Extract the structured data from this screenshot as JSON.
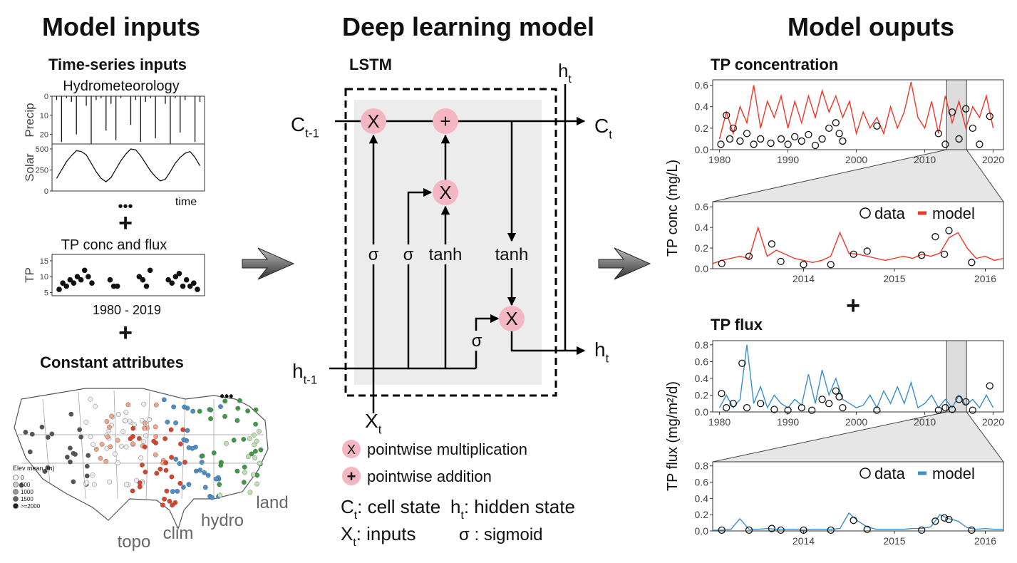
{
  "headers": [
    "Model inputs",
    "Deep learning model",
    "Model ouputs"
  ],
  "inputs": {
    "timeseries_title": "Time-series inputs",
    "hydro_title": "Hydrometeorology",
    "precip": {
      "label": "Precip",
      "ylim": [
        25,
        0
      ],
      "yticks": [
        0,
        10,
        20
      ],
      "values": [
        2,
        24,
        1,
        3,
        20,
        0,
        5,
        25,
        2,
        1,
        18,
        4,
        23,
        1,
        0,
        15,
        2,
        24,
        3,
        1,
        22,
        0,
        4,
        25,
        1,
        19,
        2,
        0,
        24,
        3
      ]
    },
    "solar": {
      "label": "Solar",
      "ylim": [
        0,
        560
      ],
      "yticks": [
        0,
        250,
        500
      ],
      "values": [
        150,
        250,
        350,
        420,
        480,
        470,
        430,
        330,
        230,
        150,
        110,
        160,
        260,
        360,
        440,
        500,
        490,
        420,
        330,
        240,
        170,
        120,
        140,
        230,
        330,
        400,
        450,
        470,
        400,
        300
      ]
    },
    "time_label": "time",
    "ellipsis": "•••",
    "plus": "+",
    "tp_title": "TP conc and flux",
    "tp": {
      "label": "TP",
      "ylim": [
        4,
        17
      ],
      "yticks": [
        5,
        10,
        15
      ],
      "x": [
        1,
        2,
        3,
        4,
        5,
        6,
        7,
        8,
        9,
        10,
        15,
        16,
        17,
        23,
        24,
        25,
        26,
        31,
        32,
        33,
        34,
        35,
        36,
        37,
        38,
        39
      ],
      "values": [
        6,
        8,
        7,
        9,
        8,
        10,
        9,
        12,
        10,
        8,
        9,
        7,
        7,
        10,
        9,
        7,
        12,
        9,
        8,
        10,
        11,
        7,
        9,
        7,
        8,
        6
      ]
    },
    "tp_range": "1980 - 2019",
    "plus2": "+",
    "const_title": "Constant attributes",
    "map_ellipsis": "•••",
    "map_legend_title": "Elev mean (m)",
    "map_legend_items": [
      "0",
      "500",
      "1000",
      "1500",
      ">=2000"
    ],
    "map_labels": [
      "topo",
      "clim",
      "hydro",
      "land"
    ]
  },
  "lstm": {
    "title": "LSTM",
    "c_prev": {
      "main": "C",
      "sub": "t-1"
    },
    "c_next": {
      "main": "C",
      "sub": "t"
    },
    "h_top": {
      "main": "h",
      "sub": "t"
    },
    "h_prev": {
      "main": "h",
      "sub": "t-1"
    },
    "h_next": {
      "main": "h",
      "sub": "t"
    },
    "x_in": {
      "main": "X",
      "sub": "t"
    },
    "ops": [
      "X",
      "+",
      "X",
      "X"
    ],
    "gates": [
      "σ",
      "σ",
      "tanh",
      "tanh",
      "σ"
    ],
    "legend": {
      "mult_symbol": "X",
      "mult": "pointwise multiplication",
      "add_symbol": "+",
      "add": "pointwise addition",
      "cell": {
        "main": "C",
        "sub": "t",
        "desc": ": cell state"
      },
      "hidden": {
        "main": "h",
        "sub": "t",
        "desc": ": hidden state"
      },
      "inputs": {
        "main": "X",
        "sub": "t",
        "desc": ": inputs"
      },
      "sigmoid": {
        "main": "σ",
        "desc": " : sigmoid"
      }
    }
  },
  "outputs": {
    "conc_title": "TP concentration",
    "conc_ylabel": "TP conc (mg/L)",
    "plus": "+",
    "flux_title": "TP flux",
    "flux_ylabel": "TP flux (mg/m²/d)",
    "panels": [
      {
        "xlim": [
          1979,
          2021.5
        ],
        "xticks": [
          1980,
          1990,
          2000,
          2010,
          2020
        ],
        "ylim": [
          0,
          0.65
        ],
        "yticks": [
          {
            "value": 0,
            "label": "0.0"
          },
          0.2,
          0.4,
          0.6
        ],
        "zoom_window": [
          2013.2,
          2016.1
        ],
        "model": {
          "color": "#e8392b",
          "x": [
            1980,
            1981,
            1982,
            1983,
            1984,
            1985,
            1986,
            1987,
            1988,
            1989,
            1990,
            1991,
            1992,
            1993,
            1994,
            1995,
            1996,
            1997,
            1998,
            1999,
            2000,
            2001,
            2002,
            2003,
            2004,
            2005,
            2006,
            2007,
            2008,
            2009,
            2010,
            2011,
            2012,
            2013,
            2014,
            2015,
            2016,
            2017,
            2018,
            2019,
            2020
          ],
          "values": [
            0.1,
            0.35,
            0.15,
            0.4,
            0.25,
            0.6,
            0.2,
            0.45,
            0.3,
            0.5,
            0.2,
            0.45,
            0.25,
            0.5,
            0.3,
            0.55,
            0.35,
            0.5,
            0.3,
            0.45,
            0.15,
            0.35,
            0.2,
            0.3,
            0.15,
            0.4,
            0.2,
            0.35,
            0.63,
            0.3,
            0.2,
            0.45,
            0.15,
            0.5,
            0.25,
            0.45,
            0.2,
            0.4,
            0.3,
            0.5,
            0.2
          ]
        },
        "data": {
          "x": [
            1980.2,
            1981,
            1981.5,
            1982,
            1983,
            1984,
            1985,
            1986,
            1987.5,
            1989,
            1990,
            1991,
            1992,
            1993,
            1994,
            1995,
            1996,
            1997,
            1997.5,
            1998,
            2003,
            2012,
            2013,
            2014,
            2015,
            2016,
            2017,
            2018,
            2019.5
          ],
          "values": [
            0.05,
            0.32,
            0.1,
            0.2,
            0.08,
            0.15,
            0.05,
            0.1,
            0.06,
            0.1,
            0.05,
            0.12,
            0.08,
            0.14,
            0.04,
            0.1,
            0.2,
            0.25,
            0.15,
            0.08,
            0.22,
            0.15,
            0.05,
            0.35,
            0.1,
            0.38,
            0.2,
            0.05,
            0.31
          ]
        }
      },
      {
        "xlim": [
          2013.0,
          2016.2
        ],
        "xticks": [
          2014,
          2015,
          2016
        ],
        "ylim": [
          0,
          0.65
        ],
        "yticks": [
          {
            "value": 0,
            "label": "0.0"
          },
          0.2,
          0.4,
          0.6
        ],
        "model": {
          "name": "model",
          "color": "#e8392b",
          "x": [
            2013.0,
            2013.1,
            2013.2,
            2013.3,
            2013.4,
            2013.5,
            2013.6,
            2013.7,
            2013.8,
            2013.9,
            2014.0,
            2014.1,
            2014.2,
            2014.3,
            2014.4,
            2014.5,
            2014.6,
            2014.7,
            2014.8,
            2014.9,
            2015.0,
            2015.1,
            2015.2,
            2015.3,
            2015.4,
            2015.5,
            2015.6,
            2015.7,
            2015.8,
            2015.9,
            2016.0,
            2016.1,
            2016.2
          ],
          "values": [
            0.05,
            0.08,
            0.1,
            0.12,
            0.1,
            0.4,
            0.12,
            0.18,
            0.14,
            0.1,
            0.08,
            0.06,
            0.08,
            0.12,
            0.35,
            0.15,
            0.14,
            0.12,
            0.1,
            0.08,
            0.1,
            0.12,
            0.1,
            0.14,
            0.12,
            0.15,
            0.3,
            0.35,
            0.2,
            0.1,
            0.12,
            0.08,
            0.1
          ]
        },
        "data": {
          "name": "data",
          "x": [
            2013.1,
            2013.4,
            2013.65,
            2013.75,
            2014.0,
            2014.3,
            2014.55,
            2014.7,
            2015.3,
            2015.45,
            2015.55,
            2015.6,
            2015.85
          ],
          "values": [
            0.05,
            0.12,
            0.24,
            0.07,
            0.04,
            0.04,
            0.14,
            0.17,
            0.13,
            0.31,
            0.14,
            0.37,
            0.06
          ]
        }
      },
      {
        "xlim": [
          1979,
          2021.5
        ],
        "xticks": [
          1980,
          1990,
          2000,
          2010,
          2020
        ],
        "ylim": [
          0,
          0.85
        ],
        "yticks": [
          {
            "value": 0,
            "label": "0.0"
          },
          0.2,
          0.4,
          0.6,
          0.8
        ],
        "zoom_window": [
          2013.2,
          2016.1
        ],
        "model": {
          "color": "#3a8ec9",
          "x": [
            1980,
            1981,
            1982,
            1983,
            1984,
            1985,
            1986,
            1987,
            1988,
            1989,
            1990,
            1991,
            1992,
            1993,
            1994,
            1995,
            1996,
            1997,
            1998,
            1999,
            2000,
            2001,
            2002,
            2003,
            2004,
            2005,
            2006,
            2007,
            2008,
            2009,
            2010,
            2011,
            2012,
            2013,
            2014,
            2015,
            2016,
            2017,
            2018,
            2019,
            2020
          ],
          "values": [
            0.05,
            0.2,
            0.05,
            0.15,
            0.8,
            0.1,
            0.3,
            0.05,
            0.2,
            0.1,
            0.05,
            0.15,
            0.08,
            0.45,
            0.1,
            0.5,
            0.2,
            0.4,
            0.15,
            0.1,
            0.05,
            0.08,
            0.2,
            0.05,
            0.25,
            0.1,
            0.3,
            0.1,
            0.35,
            0.05,
            0.1,
            0.2,
            0.05,
            0.15,
            0.05,
            0.2,
            0.08,
            0.15,
            0.05,
            0.2,
            0.05
          ]
        },
        "data": {
          "x": [
            1980.3,
            1981,
            1982,
            1983.3,
            1984,
            1986,
            1988,
            1990,
            1992,
            1993.5,
            1995,
            1996,
            1997,
            1997.5,
            1998,
            2003,
            2012,
            2013,
            2014,
            2015,
            2016,
            2017,
            2019.5
          ],
          "values": [
            0.22,
            0.05,
            0.1,
            0.58,
            0.05,
            0.1,
            0.03,
            0.02,
            0.05,
            0.02,
            0.15,
            0.1,
            0.25,
            0.18,
            0.05,
            0.02,
            0.02,
            0.05,
            0.03,
            0.15,
            0.12,
            0.02,
            0.31
          ]
        }
      },
      {
        "xlim": [
          2013.0,
          2016.2
        ],
        "xticks": [
          2014,
          2015,
          2016
        ],
        "ylim": [
          0,
          0.85
        ],
        "yticks": [
          {
            "value": 0,
            "label": "0.0"
          },
          0.2,
          0.4,
          0.6,
          0.8
        ],
        "model": {
          "name": "model",
          "color": "#3a8ec9",
          "x": [
            2013.0,
            2013.1,
            2013.2,
            2013.3,
            2013.4,
            2013.5,
            2013.6,
            2013.7,
            2013.8,
            2013.9,
            2014.0,
            2014.1,
            2014.2,
            2014.3,
            2014.4,
            2014.5,
            2014.6,
            2014.7,
            2014.8,
            2014.9,
            2015.0,
            2015.1,
            2015.2,
            2015.3,
            2015.4,
            2015.5,
            2015.6,
            2015.7,
            2015.8,
            2015.9,
            2016.0,
            2016.1,
            2016.2
          ],
          "values": [
            0.01,
            0.01,
            0.02,
            0.15,
            0.02,
            0.02,
            0.03,
            0.02,
            0.02,
            0.02,
            0.01,
            0.02,
            0.02,
            0.02,
            0.03,
            0.22,
            0.12,
            0.05,
            0.02,
            0.02,
            0.02,
            0.02,
            0.03,
            0.03,
            0.05,
            0.2,
            0.15,
            0.12,
            0.04,
            0.02,
            0.03,
            0.02,
            0.02
          ]
        },
        "data": {
          "name": "data",
          "x": [
            2013.1,
            2013.4,
            2013.65,
            2013.75,
            2014.0,
            2014.3,
            2014.55,
            2014.7,
            2015.3,
            2015.45,
            2015.55,
            2015.6,
            2015.85
          ],
          "values": [
            0.01,
            0.01,
            0.03,
            0.01,
            0.01,
            0.01,
            0.13,
            0.02,
            0.01,
            0.12,
            0.16,
            0.14,
            0.01
          ]
        }
      }
    ]
  }
}
